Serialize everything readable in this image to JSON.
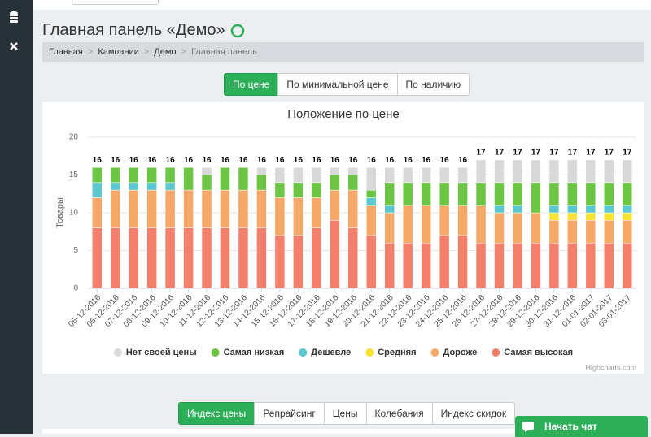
{
  "header": {
    "title": "Главная панель «Демо»"
  },
  "breadcrumb": {
    "separator": ">",
    "items": [
      "Главная",
      "Кампании",
      "Демо",
      "Главная панель"
    ]
  },
  "view_tabs": [
    "По цене",
    "По минимальной цене",
    "По наличию"
  ],
  "bottom_tabs": [
    "Индекс цены",
    "Репрайсинг",
    "Цены",
    "Колебания",
    "Индекс скидок"
  ],
  "chat": "Начать чат",
  "chart_data": {
    "type": "bar",
    "stacked": true,
    "title": "Положение по цене",
    "y_label": "Товары",
    "categories": [
      "05-12-2016",
      "06-12-2016",
      "07-12-2016",
      "08-12-2016",
      "09-12-2016",
      "10-12-2016",
      "11-12-2016",
      "12-12-2016",
      "13-12-2016",
      "14-12-2016",
      "15-12-2016",
      "16-12-2016",
      "17-12-2016",
      "18-12-2016",
      "19-12-2016",
      "20-12-2016",
      "21-12-2016",
      "22-12-2016",
      "23-12-2016",
      "24-12-2016",
      "25-12-2016",
      "26-12-2016",
      "27-12-2016",
      "28-12-2016",
      "29-12-2016",
      "30-12-2016",
      "31-12-2016",
      "01-01-2017",
      "02-01-2017",
      "03-01-2017"
    ],
    "series": [
      {
        "name": "Нет своей цены",
        "color": "#d9d9d9",
        "values": [
          0,
          0,
          0,
          0,
          0,
          0,
          1,
          0,
          0,
          1,
          2,
          2,
          2,
          1,
          1,
          3,
          2,
          2,
          2,
          2,
          2,
          3,
          3,
          3,
          3,
          3,
          3,
          3,
          3,
          3
        ]
      },
      {
        "name": "Самая низкая",
        "color": "#6cc644",
        "values": [
          2,
          2,
          2,
          2,
          2,
          3,
          2,
          3,
          3,
          2,
          2,
          2,
          2,
          2,
          2,
          1,
          3,
          3,
          3,
          3,
          3,
          3,
          3,
          3,
          4,
          3,
          3,
          3,
          3,
          3
        ]
      },
      {
        "name": "Дешевле",
        "color": "#5bc8d0",
        "values": [
          2,
          1,
          1,
          1,
          1,
          0,
          0,
          0,
          0,
          0,
          0,
          0,
          0,
          0,
          0,
          1,
          1,
          0,
          0,
          0,
          0,
          0,
          1,
          1,
          0,
          1,
          1,
          1,
          1,
          1
        ]
      },
      {
        "name": "Средняя",
        "color": "#f8e232",
        "values": [
          0,
          0,
          0,
          0,
          0,
          0,
          0,
          0,
          0,
          0,
          0,
          0,
          0,
          0,
          0,
          0,
          0,
          0,
          0,
          0,
          0,
          0,
          0,
          0,
          0,
          1,
          1,
          1,
          1,
          1
        ]
      },
      {
        "name": "Дороже",
        "color": "#f5a868",
        "values": [
          4,
          5,
          5,
          5,
          5,
          5,
          5,
          5,
          5,
          5,
          5,
          5,
          4,
          4,
          5,
          4,
          4,
          5,
          5,
          4,
          4,
          5,
          4,
          4,
          4,
          3,
          3,
          3,
          3,
          3
        ]
      },
      {
        "name": "Самая высокая",
        "color": "#f47f6b",
        "values": [
          8,
          8,
          8,
          8,
          8,
          8,
          8,
          8,
          8,
          8,
          7,
          7,
          8,
          9,
          8,
          7,
          6,
          6,
          6,
          7,
          7,
          6,
          6,
          6,
          6,
          6,
          6,
          6,
          6,
          6
        ]
      }
    ],
    "totals": [
      16,
      16,
      16,
      16,
      16,
      16,
      16,
      16,
      16,
      16,
      16,
      16,
      16,
      16,
      16,
      16,
      16,
      16,
      16,
      16,
      16,
      17,
      17,
      17,
      17,
      17,
      17,
      17,
      17,
      17
    ],
    "ylim": [
      0,
      20
    ],
    "yticks": [
      0,
      5,
      10,
      15,
      20
    ],
    "grid": true,
    "credits": "Highcharts.com"
  }
}
